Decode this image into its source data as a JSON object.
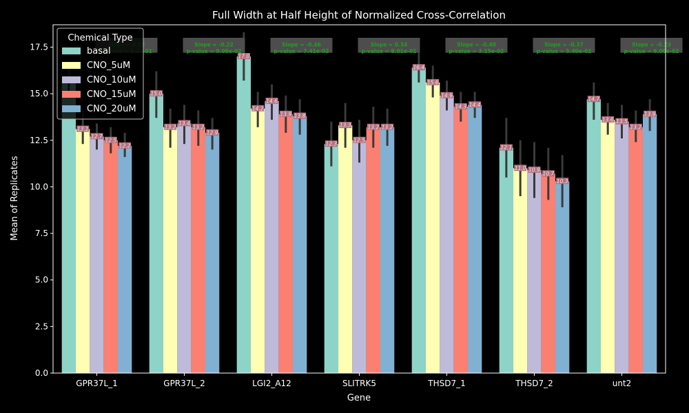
{
  "chart_data": {
    "type": "bar",
    "title": "Full Width at Half Height of Normalized Cross-Correlation",
    "xlabel": "Gene",
    "ylabel": "Mean of Replicates",
    "ylim": [
      0,
      18.7
    ],
    "yticks": [
      "0.0",
      "2.5",
      "5.0",
      "7.5",
      "10.0",
      "12.5",
      "15.0",
      "17.5"
    ],
    "categories": [
      "GPR37L_1",
      "GPR37L_2",
      "LGI2_A12",
      "SLITRK5",
      "THSD7_1",
      "THSD7_2",
      "unt2"
    ],
    "legend": {
      "title": "Chemical Type",
      "position": "top-left"
    },
    "grid": false,
    "series": [
      {
        "name": "basal",
        "color": "#8dd3c7",
        "values": [
          15.9,
          15.0,
          17.0,
          12.3,
          16.4,
          12.1,
          14.7
        ],
        "labels": [
          "",
          "15.0",
          "17.0",
          "12.3",
          "16.4",
          "12.1",
          "14.7"
        ],
        "ci": [
          [
            15.0,
            16.6
          ],
          [
            13.7,
            16.2
          ],
          [
            15.7,
            18.3
          ],
          [
            11.1,
            13.5
          ],
          [
            15.6,
            17.3
          ],
          [
            10.5,
            13.7
          ],
          [
            13.6,
            15.6
          ]
        ]
      },
      {
        "name": "CNO_5uM",
        "color": "#ffffb3",
        "values": [
          13.1,
          13.2,
          14.2,
          13.3,
          15.6,
          11.0,
          13.6
        ],
        "labels": [
          "13.1",
          "13.2",
          "14.2",
          "13.3",
          "15.6",
          "11.0",
          "13.6"
        ],
        "ci": [
          [
            12.3,
            14.1
          ],
          [
            12.1,
            14.2
          ],
          [
            13.2,
            15.1
          ],
          [
            12.1,
            14.5
          ],
          [
            14.8,
            16.5
          ],
          [
            9.5,
            12.5
          ],
          [
            12.8,
            14.5
          ]
        ]
      },
      {
        "name": "CNO_10uM",
        "color": "#bebada",
        "values": [
          12.7,
          13.4,
          14.6,
          12.5,
          14.9,
          10.9,
          13.5
        ],
        "labels": [
          "12.7",
          "13.4",
          "14.6",
          "12.5",
          "14.9",
          "10.9",
          "13.5"
        ],
        "ci": [
          [
            12.0,
            13.4
          ],
          [
            12.3,
            14.4
          ],
          [
            13.6,
            15.5
          ],
          [
            11.3,
            13.6
          ],
          [
            14.1,
            15.7
          ],
          [
            9.4,
            12.4
          ],
          [
            12.6,
            14.4
          ]
        ]
      },
      {
        "name": "CNO_15uM",
        "color": "#fb8072",
        "values": [
          12.5,
          13.2,
          13.9,
          13.2,
          14.3,
          10.7,
          13.2
        ],
        "labels": [
          "12.5",
          "13.2",
          "13.9",
          "13.2",
          "14.3",
          "10.7",
          "13.2"
        ],
        "ci": [
          [
            11.8,
            13.2
          ],
          [
            12.2,
            14.1
          ],
          [
            12.9,
            14.9
          ],
          [
            12.1,
            14.3
          ],
          [
            13.5,
            15.1
          ],
          [
            9.3,
            12.1
          ],
          [
            12.4,
            14.1
          ]
        ]
      },
      {
        "name": "CNO_20uM",
        "color": "#80b1d3",
        "values": [
          12.2,
          12.9,
          13.8,
          13.2,
          14.4,
          10.3,
          13.9
        ],
        "labels": [
          "12.2",
          "12.9",
          "13.8",
          "13.2",
          "14.4",
          "10.3",
          "13.9"
        ],
        "ci": [
          [
            11.6,
            12.9
          ],
          [
            12.0,
            13.7
          ],
          [
            12.8,
            14.7
          ],
          [
            12.2,
            14.2
          ],
          [
            13.7,
            15.1
          ],
          [
            8.9,
            11.7
          ],
          [
            13.0,
            14.7
          ]
        ]
      }
    ],
    "annotations": [
      {
        "category": "GPR37L_1",
        "line1": "Slope = 0.12",
        "line2": "p-value = 1.2e-01"
      },
      {
        "category": "GPR37L_2",
        "line1": "Slope = -0.22",
        "line2": "p-value = 9.08e-02"
      },
      {
        "category": "LGI2_A12",
        "line1": "Slope = -0.46",
        "line2": "p-value = 7.41e-02"
      },
      {
        "category": "SLITRK5",
        "line1": "Slope = 0.34",
        "line2": "p-value = 8.01e-01"
      },
      {
        "category": "THSD7_1",
        "line1": "Slope = -0.40",
        "line2": "p-value = 3.15e-02"
      },
      {
        "category": "THSD7_2",
        "line1": "Slope = -0.37",
        "line2": "p-value = 5.40e-02"
      },
      {
        "category": "unt2",
        "line1": "Slope = -0.23",
        "line2": "p-value = 6.00e-02"
      }
    ],
    "colors": {
      "background": "#000000",
      "axis": "#ffffff",
      "text": "#ffffff",
      "errorbar": "#3a3a3a",
      "value_label_bg": "#b5707f",
      "value_label_text": "#e8e8e8",
      "annotation_bg": "#4d4d4d",
      "annotation_text": "#1fa01f",
      "legend_bg": "#000000",
      "legend_border": "#bfbfbf"
    }
  }
}
